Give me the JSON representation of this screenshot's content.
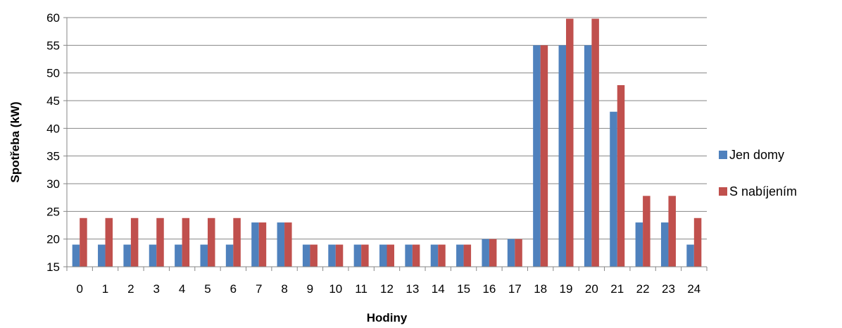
{
  "chart_data": {
    "type": "bar",
    "title": "",
    "xlabel": "Hodiny",
    "ylabel": "Spotřeba (kW)",
    "ylim": [
      15,
      60
    ],
    "yticks": [
      15,
      20,
      25,
      30,
      35,
      40,
      45,
      50,
      55,
      60
    ],
    "grid": true,
    "legend_position": "right",
    "categories": [
      "0",
      "1",
      "2",
      "3",
      "4",
      "5",
      "6",
      "7",
      "8",
      "9",
      "10",
      "11",
      "12",
      "13",
      "14",
      "15",
      "16",
      "17",
      "18",
      "19",
      "20",
      "21",
      "22",
      "23",
      "24"
    ],
    "series": [
      {
        "name": "Jen domy",
        "color": "#4f81bd",
        "values": [
          19,
          19,
          19,
          19,
          19,
          19,
          19,
          23,
          23,
          19,
          19,
          19,
          19,
          19,
          19,
          19,
          20,
          20,
          55,
          55,
          55,
          43,
          23,
          23,
          19
        ]
      },
      {
        "name": "S nabíjením",
        "color": "#c0504d",
        "values": [
          23.8,
          23.8,
          23.8,
          23.8,
          23.8,
          23.8,
          23.8,
          23,
          23,
          19,
          19,
          19,
          19,
          19,
          19,
          19,
          20,
          20,
          55,
          59.8,
          59.8,
          47.8,
          27.8,
          27.8,
          23.8
        ]
      }
    ]
  }
}
